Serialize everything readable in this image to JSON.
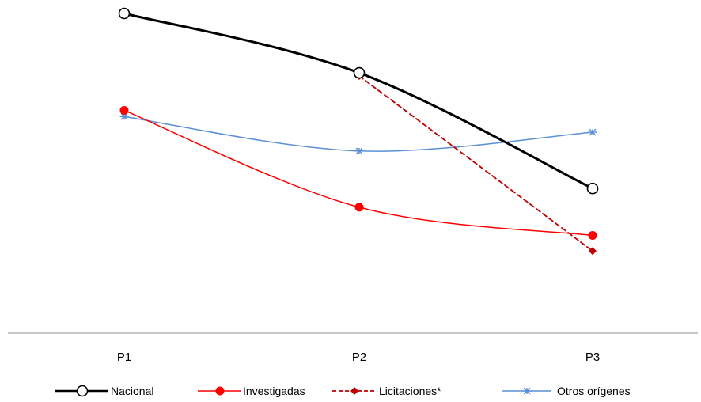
{
  "chart_data": {
    "type": "line",
    "categories": [
      "P1",
      "P2",
      "P3"
    ],
    "ylim": [
      0,
      100
    ],
    "grid": false,
    "y_axis_labels": false,
    "legend_position": "bottom",
    "series": [
      {
        "name": "Nacional",
        "values": [
          100,
          81,
          44
        ],
        "color": "#000000",
        "marker": "open-circle",
        "dash": "solid",
        "width": 3,
        "smooth": true
      },
      {
        "name": "Investigadas",
        "values": [
          69,
          38,
          29
        ],
        "color": "#ff0000",
        "marker": "filled-circle",
        "dash": "solid",
        "width": 1.5,
        "smooth": true
      },
      {
        "name": "Licitaciones*",
        "values": [
          null,
          80,
          24
        ],
        "color": "#c00000",
        "marker": "diamond",
        "dash": "dashed",
        "width": 1.8,
        "smooth": false
      },
      {
        "name": "Otros orígenes",
        "values": [
          67,
          56,
          62
        ],
        "color": "#5b8fd6",
        "marker": "asterisk",
        "dash": "solid",
        "width": 1.5,
        "smooth": true
      }
    ]
  }
}
